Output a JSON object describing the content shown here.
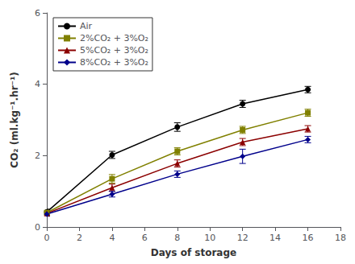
{
  "chart_data": {
    "type": "line",
    "x": [
      0,
      4,
      8,
      12,
      16
    ],
    "series": [
      {
        "name": "Air",
        "color": "#000000",
        "marker": "circle",
        "values": [
          0.42,
          2.02,
          2.8,
          3.45,
          3.85
        ],
        "errors": [
          0.08,
          0.1,
          0.12,
          0.1,
          0.09
        ]
      },
      {
        "name": "2%CO₂ + 3%O₂",
        "color": "#808000",
        "marker": "square",
        "values": [
          0.4,
          1.35,
          2.12,
          2.72,
          3.2
        ],
        "errors": [
          0.07,
          0.12,
          0.1,
          0.1,
          0.1
        ]
      },
      {
        "name": "5%CO₂ + 3%O₂",
        "color": "#8B0000",
        "marker": "triangle",
        "values": [
          0.38,
          1.1,
          1.78,
          2.38,
          2.75
        ],
        "errors": [
          0.06,
          0.1,
          0.1,
          0.1,
          0.09
        ]
      },
      {
        "name": "8%CO₂ + 3%O₂",
        "color": "#00008B",
        "marker": "diamond",
        "values": [
          0.36,
          0.92,
          1.48,
          1.98,
          2.45
        ],
        "errors": [
          0.06,
          0.08,
          0.09,
          0.2,
          0.09
        ]
      }
    ],
    "xlabel": "Days of storage",
    "ylabel": "CO₂ (ml.kg⁻¹.hr⁻¹)",
    "xlim": [
      0,
      18
    ],
    "ylim": [
      0,
      6
    ],
    "xticks": [
      0,
      2,
      4,
      6,
      8,
      10,
      12,
      14,
      16,
      18
    ],
    "yticks": [
      0,
      2,
      4,
      6
    ],
    "legend": "upper left",
    "grid": false
  }
}
